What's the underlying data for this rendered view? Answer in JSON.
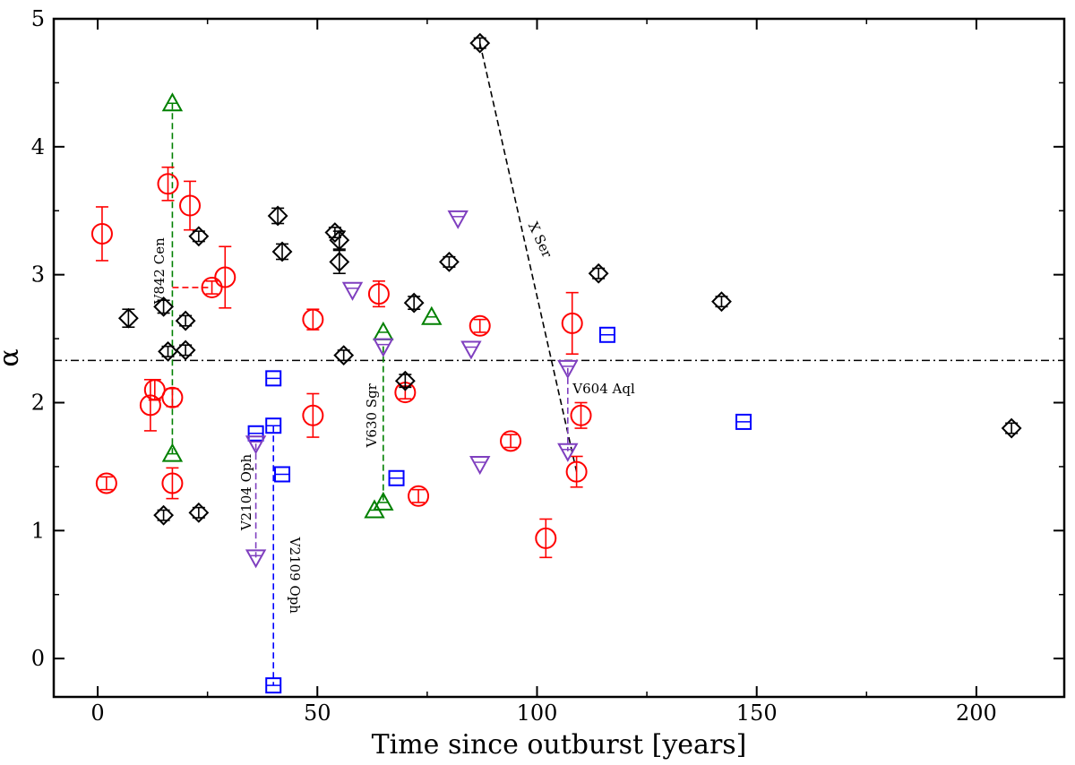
{
  "chart_data": {
    "type": "scatter",
    "xlabel": "Time since outburst [years]",
    "ylabel": "α",
    "xlim": [
      -10,
      220
    ],
    "ylim": [
      -0.3,
      5.0
    ],
    "xticks": [
      0,
      50,
      100,
      150,
      200
    ],
    "yticks": [
      0,
      1,
      2,
      3,
      4,
      5
    ],
    "reference_line": {
      "name": "mean-alpha",
      "y": 2.33,
      "color": "#000000"
    },
    "series": [
      {
        "name": "red-circles",
        "marker": "circle",
        "color": "#ff0000",
        "points": [
          {
            "x": 1,
            "y": 3.32,
            "err": 0.21
          },
          {
            "x": 2,
            "y": 1.37,
            "err": 0.05
          },
          {
            "x": 12,
            "y": 1.98,
            "err": 0.2
          },
          {
            "x": 13,
            "y": 2.1,
            "err": 0.08
          },
          {
            "x": 16,
            "y": 3.71,
            "err": 0.13
          },
          {
            "x": 17,
            "y": 2.04,
            "err": 0.07
          },
          {
            "x": 17,
            "y": 1.37,
            "err": 0.12
          },
          {
            "x": 21,
            "y": 3.54,
            "err": 0.19
          },
          {
            "x": 26,
            "y": 2.9,
            "err": 0.05
          },
          {
            "x": 29,
            "y": 2.98,
            "err": 0.24
          },
          {
            "x": 49,
            "y": 2.65,
            "err": 0.08
          },
          {
            "x": 49,
            "y": 1.9,
            "err": 0.17
          },
          {
            "x": 64,
            "y": 2.85,
            "err": 0.1
          },
          {
            "x": 70,
            "y": 2.08,
            "err": 0.05
          },
          {
            "x": 73,
            "y": 1.27,
            "err": 0.05
          },
          {
            "x": 87,
            "y": 2.6,
            "err": 0.05
          },
          {
            "x": 94,
            "y": 1.7,
            "err": 0.05
          },
          {
            "x": 102,
            "y": 0.94,
            "err": 0.15
          },
          {
            "x": 108,
            "y": 2.62,
            "err": 0.24
          },
          {
            "x": 109,
            "y": 1.46,
            "err": 0.12
          },
          {
            "x": 110,
            "y": 1.9,
            "err": 0.1
          }
        ]
      },
      {
        "name": "black-diamonds",
        "marker": "diamond",
        "color": "#000000",
        "points": [
          {
            "x": 7,
            "y": 2.66,
            "err": 0.07
          },
          {
            "x": 15,
            "y": 2.75,
            "err": 0.05
          },
          {
            "x": 15,
            "y": 1.12,
            "err": 0.04
          },
          {
            "x": 16,
            "y": 2.4,
            "err": 0.04
          },
          {
            "x": 20,
            "y": 2.64,
            "err": 0.04
          },
          {
            "x": 20,
            "y": 2.41,
            "err": 0.04
          },
          {
            "x": 23,
            "y": 3.3,
            "err": 0.04
          },
          {
            "x": 23,
            "y": 1.14,
            "err": 0.04
          },
          {
            "x": 41,
            "y": 3.46,
            "err": 0.06
          },
          {
            "x": 42,
            "y": 3.18,
            "err": 0.06
          },
          {
            "x": 54,
            "y": 3.33,
            "err": 0.04
          },
          {
            "x": 55,
            "y": 3.27,
            "err": 0.07
          },
          {
            "x": 55,
            "y": 3.1,
            "err": 0.09
          },
          {
            "x": 56,
            "y": 2.37,
            "err": 0.04
          },
          {
            "x": 70,
            "y": 2.17,
            "err": 0.05
          },
          {
            "x": 72,
            "y": 2.78,
            "err": 0.05
          },
          {
            "x": 80,
            "y": 3.1,
            "err": 0.04
          },
          {
            "x": 87,
            "y": 4.81,
            "err": 0.04
          },
          {
            "x": 114,
            "y": 3.01,
            "err": 0.04
          },
          {
            "x": 142,
            "y": 2.79,
            "err": 0.04
          },
          {
            "x": 208,
            "y": 1.8,
            "err": 0.04
          }
        ]
      },
      {
        "name": "green-triangles",
        "marker": "triangle-up",
        "color": "#008000",
        "points": [
          {
            "x": 17,
            "y": 4.34
          },
          {
            "x": 17,
            "y": 1.6
          },
          {
            "x": 63,
            "y": 1.16
          },
          {
            "x": 65,
            "y": 1.22
          },
          {
            "x": 65,
            "y": 2.55
          },
          {
            "x": 76,
            "y": 2.67
          }
        ]
      },
      {
        "name": "blue-squares",
        "marker": "square",
        "color": "#0000ff",
        "points": [
          {
            "x": 36,
            "y": 1.76
          },
          {
            "x": 40,
            "y": 2.19
          },
          {
            "x": 40,
            "y": 1.82
          },
          {
            "x": 40,
            "y": -0.21
          },
          {
            "x": 42,
            "y": 1.44
          },
          {
            "x": 68,
            "y": 1.41
          },
          {
            "x": 116,
            "y": 2.53
          },
          {
            "x": 147,
            "y": 1.85
          }
        ]
      },
      {
        "name": "violet-triangles",
        "marker": "triangle-down",
        "color": "#7f3fbf",
        "points": [
          {
            "x": 36,
            "y": 1.68
          },
          {
            "x": 36,
            "y": 0.79
          },
          {
            "x": 58,
            "y": 2.88
          },
          {
            "x": 65,
            "y": 2.44
          },
          {
            "x": 82,
            "y": 3.44
          },
          {
            "x": 85,
            "y": 2.42
          },
          {
            "x": 87,
            "y": 1.52
          },
          {
            "x": 107,
            "y": 2.27
          },
          {
            "x": 107,
            "y": 1.62
          }
        ]
      }
    ],
    "connectors": [
      {
        "name": "v842-cen-connector",
        "color": "#008000",
        "points": [
          [
            17,
            4.34
          ],
          [
            17,
            1.6
          ]
        ]
      },
      {
        "name": "red-horizontal-connector",
        "color": "#ff0000",
        "points": [
          [
            17,
            2.9
          ],
          [
            26,
            2.9
          ]
        ]
      },
      {
        "name": "v2104-oph-connector",
        "color": "#7f3fbf",
        "points": [
          [
            36,
            1.68
          ],
          [
            36,
            0.79
          ]
        ]
      },
      {
        "name": "v2109-oph-connector",
        "color": "#0000ff",
        "points": [
          [
            40,
            1.82
          ],
          [
            40,
            -0.21
          ]
        ]
      },
      {
        "name": "v630-sgr-connector",
        "color": "#008000",
        "points": [
          [
            65,
            2.44
          ],
          [
            65,
            1.22
          ]
        ]
      },
      {
        "name": "x-ser-connector",
        "color": "#000000",
        "points": [
          [
            87,
            4.81
          ],
          [
            109,
            1.46
          ]
        ]
      },
      {
        "name": "v604-aql-connector",
        "color": "#7f3fbf",
        "points": [
          [
            107,
            2.27
          ],
          [
            107,
            1.62
          ]
        ]
      }
    ],
    "annotations": [
      {
        "name": "label-v842-cen",
        "text": "V842 Cen",
        "x": 14.3,
        "y": 3.03,
        "rotate": -90
      },
      {
        "name": "label-v2104-oph",
        "text": "V2104 Oph",
        "x": 34.0,
        "y": 1.3,
        "rotate": -90
      },
      {
        "name": "label-v2109-oph",
        "text": "V2109 Oph",
        "x": 44.6,
        "y": 0.65,
        "rotate": 90
      },
      {
        "name": "label-v630-sgr",
        "text": "V630 Sgr",
        "x": 62.6,
        "y": 1.9,
        "rotate": -90
      },
      {
        "name": "label-x-ser",
        "text": "X Ser",
        "x": 100.5,
        "y": 3.27,
        "rotate": 65
      },
      {
        "name": "label-v604-aql",
        "text": "V604 Aql",
        "x": 115.2,
        "y": 2.1,
        "rotate": 0
      }
    ]
  }
}
